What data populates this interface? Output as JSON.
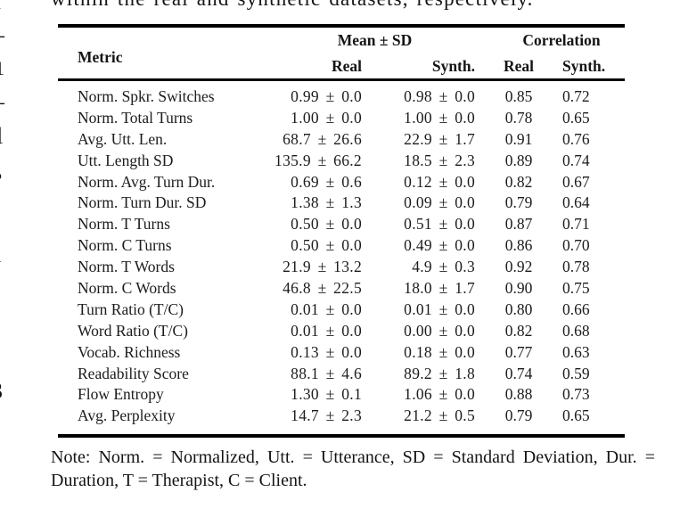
{
  "page": {
    "top_text": "within the real and synthetic datasets, respectively.",
    "background_color": "#ffffff",
    "text_color": "#151515",
    "rule_color": "#000000"
  },
  "table": {
    "header": {
      "metric": "Metric",
      "group_mean": "Mean ± SD",
      "group_correlation": "Correlation",
      "sub_mean_real": "Real",
      "sub_mean_synth": "Synth.",
      "sub_corr_real": "Real",
      "sub_corr_synth": "Synth."
    },
    "rows": [
      {
        "metric": "Norm. Spkr. Switches",
        "mean_real": "0.99 ± 0.0",
        "mean_synth": "0.98 ± 0.0",
        "corr_real": "0.85",
        "corr_synth": "0.72"
      },
      {
        "metric": "Norm. Total Turns",
        "mean_real": "1.00 ± 0.0",
        "mean_synth": "1.00 ± 0.0",
        "corr_real": "0.78",
        "corr_synth": "0.65"
      },
      {
        "metric": "Avg. Utt. Len.",
        "mean_real": "68.7 ± 26.6",
        "mean_synth": "22.9 ± 1.7",
        "corr_real": "0.91",
        "corr_synth": "0.76"
      },
      {
        "metric": "Utt. Length SD",
        "mean_real": "135.9 ± 66.2",
        "mean_synth": "18.5 ± 2.3",
        "corr_real": "0.89",
        "corr_synth": "0.74"
      },
      {
        "metric": "Norm. Avg. Turn Dur.",
        "mean_real": "0.69 ± 0.6",
        "mean_synth": "0.12 ± 0.0",
        "corr_real": "0.82",
        "corr_synth": "0.67"
      },
      {
        "metric": "Norm. Turn Dur. SD",
        "mean_real": "1.38 ± 1.3",
        "mean_synth": "0.09 ± 0.0",
        "corr_real": "0.79",
        "corr_synth": "0.64"
      },
      {
        "metric": "Norm. T Turns",
        "mean_real": "0.50 ± 0.0",
        "mean_synth": "0.51 ± 0.0",
        "corr_real": "0.87",
        "corr_synth": "0.71"
      },
      {
        "metric": "Norm. C Turns",
        "mean_real": "0.50 ± 0.0",
        "mean_synth": "0.49 ± 0.0",
        "corr_real": "0.86",
        "corr_synth": "0.70"
      },
      {
        "metric": "Norm. T Words",
        "mean_real": "21.9 ± 13.2",
        "mean_synth": "4.9 ± 0.3",
        "corr_real": "0.92",
        "corr_synth": "0.78"
      },
      {
        "metric": "Norm. C Words",
        "mean_real": "46.8 ± 22.5",
        "mean_synth": "18.0 ± 1.7",
        "corr_real": "0.90",
        "corr_synth": "0.75"
      },
      {
        "metric": "Turn Ratio (T/C)",
        "mean_real": "0.01 ± 0.0",
        "mean_synth": "0.01 ± 0.0",
        "corr_real": "0.80",
        "corr_synth": "0.66"
      },
      {
        "metric": "Word Ratio (T/C)",
        "mean_real": "0.01 ± 0.0",
        "mean_synth": "0.00 ± 0.0",
        "corr_real": "0.82",
        "corr_synth": "0.68"
      },
      {
        "metric": "Vocab. Richness",
        "mean_real": "0.13 ± 0.0",
        "mean_synth": "0.18 ± 0.0",
        "corr_real": "0.77",
        "corr_synth": "0.63"
      },
      {
        "metric": "Readability Score",
        "mean_real": "88.1 ± 4.6",
        "mean_synth": "89.2 ± 1.8",
        "corr_real": "0.74",
        "corr_synth": "0.59"
      },
      {
        "metric": "Flow Entropy",
        "mean_real": "1.30 ± 0.1",
        "mean_synth": "1.06 ± 0.0",
        "corr_real": "0.88",
        "corr_synth": "0.73"
      },
      {
        "metric": "Avg. Perplexity",
        "mean_real": "14.7 ± 2.3",
        "mean_synth": "21.2 ± 0.5",
        "corr_real": "0.79",
        "corr_synth": "0.65"
      }
    ]
  },
  "note": {
    "line1": "Note: Norm. = Normalized, Utt. = Utterance, SD = Standard Deviation, Dur. =",
    "line2": "Duration, T = Therapist, C = Client."
  },
  "edge_fragments": [
    {
      "glyph": "l"
    },
    {
      "glyph": "—"
    },
    {
      "glyph": "1"
    },
    {
      "glyph": "—"
    },
    {
      "glyph": "l"
    },
    {
      "glyph": "●"
    },
    {
      "glyph": "y"
    },
    {
      "glyph": "-"
    },
    {
      "glyph": "t"
    },
    {
      "glyph": "-"
    },
    {
      "glyph": "3"
    },
    {
      "glyph": "t"
    },
    {
      "glyph": "e"
    }
  ]
}
